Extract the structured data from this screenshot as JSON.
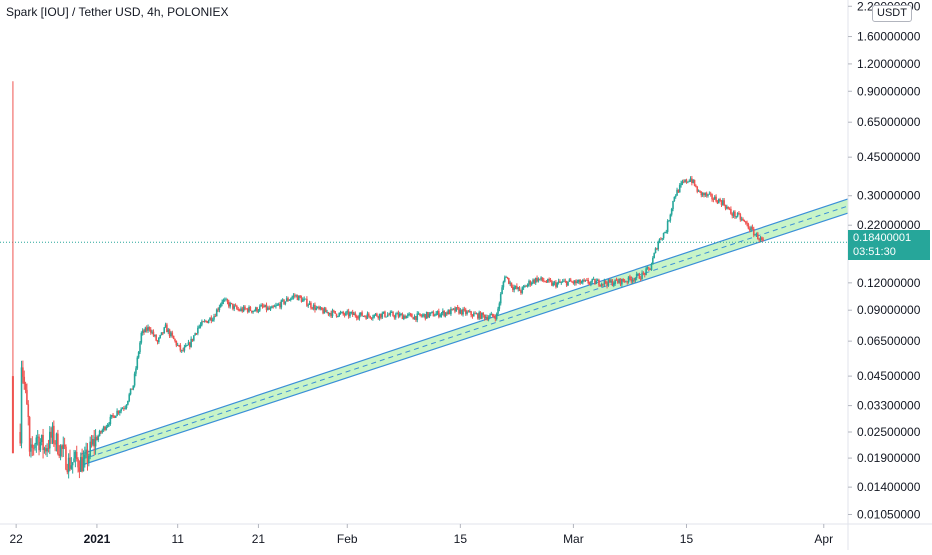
{
  "header": {
    "title": "Spark [IOU] / Tether USD, 4h, POLONIEX",
    "currency": "USDT"
  },
  "last_price": {
    "value": "0.18400001",
    "countdown": "03:51:30",
    "color": "#26a69a"
  },
  "colors": {
    "up": "#26a69a",
    "down": "#ef5350",
    "channel_fill": "#b5f0b5",
    "channel_border": "#3a8fd8",
    "axis_text": "#131722"
  },
  "chart_data": {
    "type": "candlestick",
    "title": "Spark [IOU] / Tether USD, 4h, POLONIEX",
    "scale": "log",
    "y_tick_labels": [
      "2.20000000",
      "1.60000000",
      "1.20000000",
      "0.90000000",
      "0.65000000",
      "0.45000000",
      "0.30000000",
      "0.22000000",
      "0.12000000",
      "0.09000000",
      "0.06500000",
      "0.04500000",
      "0.03300000",
      "0.02500000",
      "0.01900000",
      "0.01400000",
      "0.01050000"
    ],
    "y_ticks": [
      2.2,
      1.6,
      1.2,
      0.9,
      0.65,
      0.45,
      0.3,
      0.22,
      0.12,
      0.09,
      0.065,
      0.045,
      0.033,
      0.025,
      0.019,
      0.014,
      0.0105
    ],
    "x_tick_labels": [
      "22",
      "2021",
      "11",
      "21",
      "Feb",
      "15",
      "Mar",
      "15",
      "Apr"
    ],
    "x_tick_dates": [
      "2020-12-22",
      "2021-01-01",
      "2021-01-11",
      "2021-01-21",
      "2021-02-01",
      "2021-02-15",
      "2021-03-01",
      "2021-03-15",
      "2021-04-01"
    ],
    "x_range": [
      "2020-12-20",
      "2021-04-04"
    ],
    "y_range": [
      0.0095,
      2.35
    ],
    "last_price": 0.18400001,
    "grid": false,
    "legend": "none",
    "price_path": [
      [
        "2020-12-22",
        0.025
      ],
      [
        "2020-12-22",
        0.06
      ],
      [
        "2020-12-23",
        0.028
      ],
      [
        "2020-12-23",
        0.018
      ],
      [
        "2020-12-24",
        0.024
      ],
      [
        "2020-12-25",
        0.021
      ],
      [
        "2020-12-26",
        0.024
      ],
      [
        "2020-12-27",
        0.021
      ],
      [
        "2020-12-28",
        0.018
      ],
      [
        "2020-12-29",
        0.0185
      ],
      [
        "2020-12-30",
        0.018
      ],
      [
        "2020-12-31",
        0.022
      ],
      [
        "2021-01-01",
        0.025
      ],
      [
        "2021-01-02",
        0.028
      ],
      [
        "2021-01-03",
        0.031
      ],
      [
        "2021-01-04",
        0.033
      ],
      [
        "2021-01-05",
        0.041
      ],
      [
        "2021-01-06",
        0.07
      ],
      [
        "2021-01-07",
        0.075
      ],
      [
        "2021-01-08",
        0.064
      ],
      [
        "2021-01-09",
        0.075
      ],
      [
        "2021-01-10",
        0.066
      ],
      [
        "2021-01-11",
        0.058
      ],
      [
        "2021-01-12",
        0.063
      ],
      [
        "2021-01-13",
        0.075
      ],
      [
        "2021-01-14",
        0.08
      ],
      [
        "2021-01-15",
        0.085
      ],
      [
        "2021-01-16",
        0.1
      ],
      [
        "2021-01-17",
        0.095
      ],
      [
        "2021-01-18",
        0.09
      ],
      [
        "2021-01-19",
        0.091
      ],
      [
        "2021-01-20",
        0.09
      ],
      [
        "2021-01-21",
        0.093
      ],
      [
        "2021-01-22",
        0.09
      ],
      [
        "2021-01-23",
        0.095
      ],
      [
        "2021-01-24",
        0.1
      ],
      [
        "2021-01-25",
        0.105
      ],
      [
        "2021-01-26",
        0.1
      ],
      [
        "2021-01-27",
        0.095
      ],
      [
        "2021-01-28",
        0.09
      ],
      [
        "2021-01-29",
        0.088
      ],
      [
        "2021-01-30",
        0.087
      ],
      [
        "2021-01-31",
        0.086
      ],
      [
        "2021-02-01",
        0.086
      ],
      [
        "2021-02-03",
        0.085
      ],
      [
        "2021-02-05",
        0.086
      ],
      [
        "2021-02-07",
        0.085
      ],
      [
        "2021-02-09",
        0.084
      ],
      [
        "2021-02-11",
        0.086
      ],
      [
        "2021-02-13",
        0.088
      ],
      [
        "2021-02-14",
        0.09
      ],
      [
        "2021-02-16",
        0.086
      ],
      [
        "2021-02-18",
        0.084
      ],
      [
        "2021-02-19",
        0.085
      ],
      [
        "2021-02-20",
        0.13
      ],
      [
        "2021-02-21",
        0.115
      ],
      [
        "2021-02-22",
        0.11
      ],
      [
        "2021-02-23",
        0.12
      ],
      [
        "2021-02-24",
        0.125
      ],
      [
        "2021-02-25",
        0.122
      ],
      [
        "2021-02-26",
        0.118
      ],
      [
        "2021-02-27",
        0.12
      ],
      [
        "2021-02-28",
        0.121
      ],
      [
        "2021-03-01",
        0.12
      ],
      [
        "2021-03-03",
        0.121
      ],
      [
        "2021-03-05",
        0.12
      ],
      [
        "2021-03-07",
        0.123
      ],
      [
        "2021-03-09",
        0.13
      ],
      [
        "2021-03-10",
        0.14
      ],
      [
        "2021-03-11",
        0.185
      ],
      [
        "2021-03-12",
        0.21
      ],
      [
        "2021-03-13",
        0.3
      ],
      [
        "2021-03-14",
        0.34
      ],
      [
        "2021-03-15",
        0.36
      ],
      [
        "2021-03-16",
        0.31
      ],
      [
        "2021-03-17",
        0.3
      ],
      [
        "2021-03-18",
        0.29
      ],
      [
        "2021-03-19",
        0.28
      ],
      [
        "2021-03-20",
        0.25
      ],
      [
        "2021-03-21",
        0.24
      ],
      [
        "2021-03-22",
        0.22
      ],
      [
        "2021-03-23",
        0.2
      ],
      [
        "2021-03-24",
        0.184
      ]
    ],
    "spike": {
      "date": "2020-12-21",
      "high": 1.0,
      "low": 0.0125
    },
    "channel": {
      "start": {
        "date": "2020-12-30",
        "lower": 0.0176,
        "upper": 0.0198
      },
      "end": {
        "date": "2021-04-04",
        "lower": 0.25,
        "upper": 0.29
      }
    }
  }
}
